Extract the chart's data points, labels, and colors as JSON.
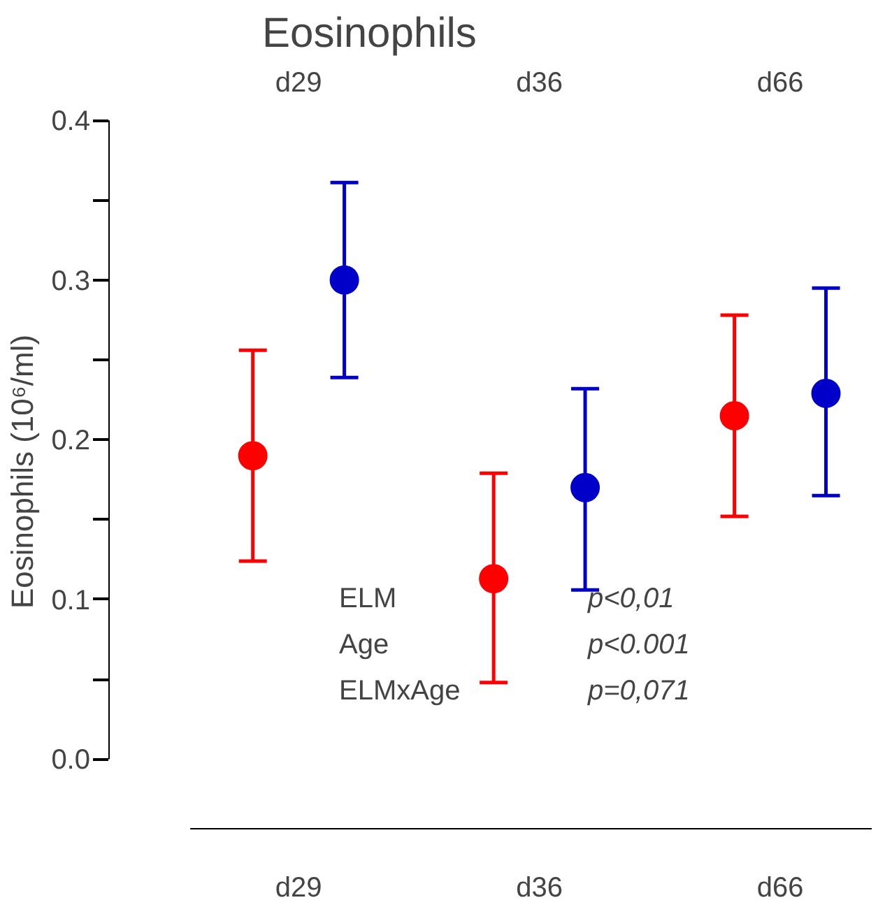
{
  "chart_data": {
    "type": "scatter",
    "title": "Eosinophils",
    "ylabel": "Eosinophils (10⁶/ml)",
    "categories": [
      "d29",
      "d36",
      "d66"
    ],
    "series": [
      {
        "color": "#ff0000",
        "values": [
          0.19,
          0.113,
          0.215
        ],
        "errors": [
          [
            0.124,
            0.256
          ],
          [
            0.048,
            0.179
          ],
          [
            0.152,
            0.278
          ]
        ]
      },
      {
        "color": "#0000c8",
        "values": [
          0.3,
          0.17,
          0.229
        ],
        "errors": [
          [
            0.239,
            0.361
          ],
          [
            0.106,
            0.232
          ],
          [
            0.165,
            0.295
          ]
        ]
      }
    ],
    "ylim": [
      0,
      0.4
    ],
    "yticks": [
      {
        "value": 0,
        "label": "0.0"
      },
      0.1,
      0.2,
      0.3,
      0.4
    ],
    "grid": false,
    "marker": "circle",
    "annotations": [
      "ELM",
      "p<0,01",
      "Age",
      "p<0.001",
      "ELMxAge",
      "p=0,071"
    ]
  }
}
